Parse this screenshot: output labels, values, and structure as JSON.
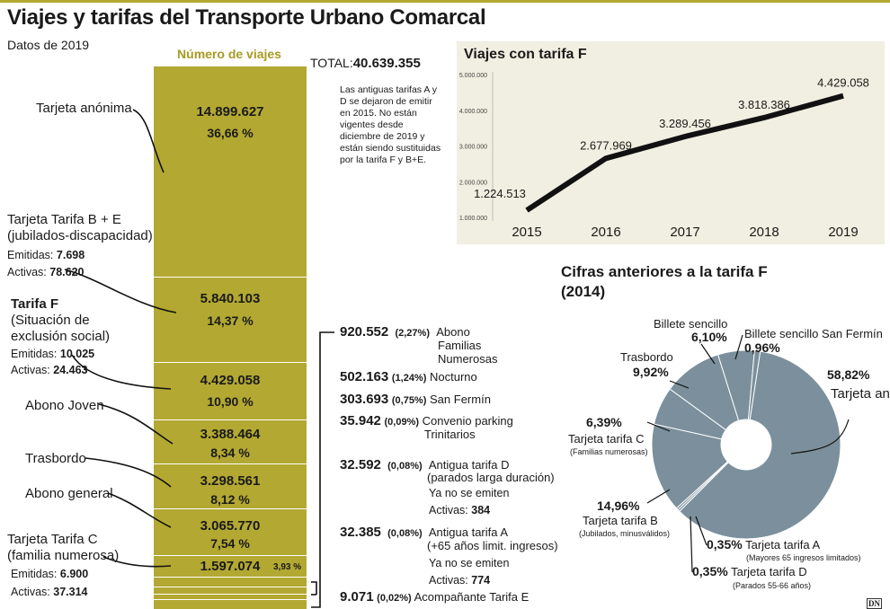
{
  "header": {
    "title": "Viajes y tarifas del Transporte Urbano Comarcal",
    "subtitle": "Datos de 2019"
  },
  "main_bar": {
    "column_title": "Número de viajes",
    "total_label": "TOTAL:",
    "total_value": "40.639.355",
    "note": "Las antiguas tarifas A y D se dejaron de emitir en 2015. No están vigentes desde diciembre de 2019 y están siendo sustituidas por la tarifa F y B+E.",
    "segments": [
      {
        "value": "14.899.627",
        "pct": "36,66 %"
      },
      {
        "value": "5.840.103",
        "pct": "14,37 %"
      },
      {
        "value": "4.429.058",
        "pct": "10,90 %"
      },
      {
        "value": "3.388.464",
        "pct": "8,34 %"
      },
      {
        "value": "3.298.561",
        "pct": "8,12 %"
      },
      {
        "value": "3.065.770",
        "pct": "7,54 %"
      },
      {
        "value": "1.597.074",
        "pct": "3,93 %"
      }
    ],
    "labels": {
      "anonima": "Tarjeta anónima",
      "be_1": "Tarjeta Tarifa B + E",
      "be_2": "(jubilados-discapacidad)",
      "be_emitidas_label": "Emitidas:",
      "be_emitidas": "7.698",
      "be_activas_label": "Activas:",
      "be_activas": "78.620",
      "f_1": "Tarifa F",
      "f_2": "(Situación de",
      "f_3": "exclusión social)",
      "f_emitidas_label": "Emitidas:",
      "f_emitidas": "10.025",
      "f_activas_label": "Activas:",
      "f_activas": "24.463",
      "joven": "Abono Joven",
      "trasbordo": "Trasbordo",
      "general": "Abono general",
      "c_1": "Tarjeta Tarifa C",
      "c_2": "(familia numerosa)",
      "c_emitidas_label": "Emitidas:",
      "c_emitidas": "6.900",
      "c_activas_label": "Activas:",
      "c_activas": "37.314"
    },
    "small_items": [
      {
        "value": "920.552",
        "pct": "(2,27%)",
        "label1": "Abono",
        "label2": "Familias",
        "label3": "Numerosas"
      },
      {
        "value": "502.163",
        "pct": "(1,24%)",
        "label1": "Nocturno"
      },
      {
        "value": "303.693",
        "pct": "(0,75%)",
        "label1": "San Fermín"
      },
      {
        "value": "35.942",
        "pct": "(0,09%)",
        "label1": "Convenio parking",
        "label2": "Trinitarios"
      },
      {
        "value": "32.592",
        "pct": "(0,08%)",
        "label1": "Antigua tarifa D",
        "label2": "(parados larga duración)",
        "note1": "Ya no se emiten",
        "note2_label": "Activas:",
        "note2_value": "384"
      },
      {
        "value": "32.385",
        "pct": "(0,08%)",
        "label1": "Antigua tarifa A",
        "label2": "(+65 años limit. ingresos)",
        "note1": "Ya no se emiten",
        "note2_label": "Activas:",
        "note2_value": "774"
      },
      {
        "value": "9.071",
        "pct": "(0,02%)",
        "label1": "Acompañante Tarifa E"
      }
    ]
  },
  "chart_data": [
    {
      "type": "line",
      "title": "Viajes con tarifa F",
      "x": [
        "2015",
        "2016",
        "2017",
        "2018",
        "2019"
      ],
      "values": [
        1224513,
        2677969,
        3289456,
        3818386,
        4429058
      ],
      "data_labels": [
        "1.224.513",
        "2.677.969",
        "3.289.456",
        "3.818.386",
        "4.429.058"
      ],
      "ylim": [
        1000000,
        5000000
      ],
      "yticks": [
        "1.000.000",
        "2.000.000",
        "3.000.000",
        "4.000.000",
        "5.000.000"
      ],
      "line_color": "#111111",
      "background": "#f1efe1"
    },
    {
      "type": "pie",
      "title_line1": "Cifras anteriores a la tarifa F",
      "title_line2": "(2014)",
      "color": "#7b909c",
      "slices": [
        {
          "label": "Tarjeta anónima",
          "value": 58.82,
          "pct_text": "58,82%"
        },
        {
          "label": "Tarjeta  tarifa A",
          "value": 0.35,
          "pct_text": "0,35%",
          "sub": "(Mayores 65 ingresos limitados)"
        },
        {
          "label": "Tarjeta  tarifa D",
          "value": 0.35,
          "pct_text": "0,35%",
          "sub": "(Parados 55-66 años)"
        },
        {
          "label": "Tarjeta  tarifa B",
          "value": 14.96,
          "pct_text": "14,96%",
          "sub": "(Jubilados, minusválidos)"
        },
        {
          "label": "Tarjeta  tarifa C",
          "value": 6.39,
          "pct_text": "6,39%",
          "sub": "(Familias numerosas)"
        },
        {
          "label": "Trasbordo",
          "value": 9.92,
          "pct_text": "9,92%"
        },
        {
          "label": "Billete sencillo",
          "value": 6.1,
          "pct_text": "6,10%"
        },
        {
          "label": "Billete sencillo San Fermín",
          "value": 0.96,
          "pct_text": "0,96%"
        }
      ]
    }
  ],
  "footer": {
    "logo": "DN"
  }
}
